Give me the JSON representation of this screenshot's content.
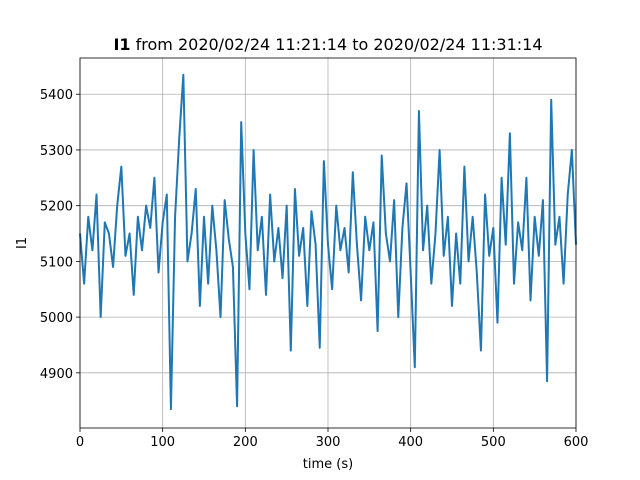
{
  "chart_data": {
    "type": "line",
    "title_parts": [
      "I1",
      "from 2020/02/24 11:21:14 to 2020/02/24 11:31:14"
    ],
    "xlabel": "time (s)",
    "ylabel": "I1",
    "x": [
      0,
      5,
      10,
      15,
      20,
      25,
      30,
      35,
      40,
      45,
      50,
      55,
      60,
      65,
      70,
      75,
      80,
      85,
      90,
      95,
      100,
      105,
      110,
      115,
      120,
      125,
      130,
      135,
      140,
      145,
      150,
      155,
      160,
      165,
      170,
      175,
      180,
      185,
      190,
      195,
      200,
      205,
      210,
      215,
      220,
      225,
      230,
      235,
      240,
      245,
      250,
      255,
      260,
      265,
      270,
      275,
      280,
      285,
      290,
      295,
      300,
      305,
      310,
      315,
      320,
      325,
      330,
      335,
      340,
      345,
      350,
      355,
      360,
      365,
      370,
      375,
      380,
      385,
      390,
      395,
      400,
      405,
      410,
      415,
      420,
      425,
      430,
      435,
      440,
      445,
      450,
      455,
      460,
      465,
      470,
      475,
      480,
      485,
      490,
      495,
      500,
      505,
      510,
      515,
      520,
      525,
      530,
      535,
      540,
      545,
      550,
      555,
      560,
      565,
      570,
      575,
      580,
      585,
      590,
      595,
      600
    ],
    "values": [
      5150,
      5060,
      5180,
      5120,
      5220,
      5000,
      5170,
      5150,
      5090,
      5200,
      5270,
      5110,
      5150,
      5040,
      5180,
      5120,
      5200,
      5160,
      5250,
      5080,
      5170,
      5220,
      4835,
      5180,
      5320,
      5435,
      5100,
      5150,
      5230,
      5020,
      5180,
      5060,
      5200,
      5120,
      5000,
      5210,
      5140,
      5090,
      4840,
      5350,
      5150,
      5050,
      5300,
      5120,
      5180,
      5040,
      5220,
      5100,
      5160,
      5070,
      5200,
      4940,
      5230,
      5110,
      5160,
      5020,
      5190,
      5130,
      4945,
      5280,
      5130,
      5050,
      5200,
      5120,
      5160,
      5080,
      5260,
      5130,
      5030,
      5180,
      5120,
      5170,
      4975,
      5290,
      5150,
      5100,
      5210,
      5000,
      5160,
      5240,
      5080,
      4910,
      5370,
      5120,
      5200,
      5060,
      5150,
      5300,
      5110,
      5180,
      5020,
      5150,
      5060,
      5270,
      5100,
      5180,
      5080,
      4940,
      5220,
      5110,
      5160,
      4990,
      5250,
      5130,
      5330,
      5060,
      5170,
      5120,
      5250,
      5030,
      5180,
      5110,
      5210,
      4885,
      5390,
      5130,
      5180,
      5060,
      5220,
      5300,
      5130
    ],
    "color": "#1f77b4",
    "xlim": [
      0,
      600
    ],
    "xticks": [
      0,
      100,
      200,
      300,
      400,
      500,
      600
    ],
    "ylim": [
      4801,
      5465
    ],
    "yticks": [
      4900,
      5000,
      5100,
      5200,
      5300,
      5400
    ],
    "grid": true
  }
}
